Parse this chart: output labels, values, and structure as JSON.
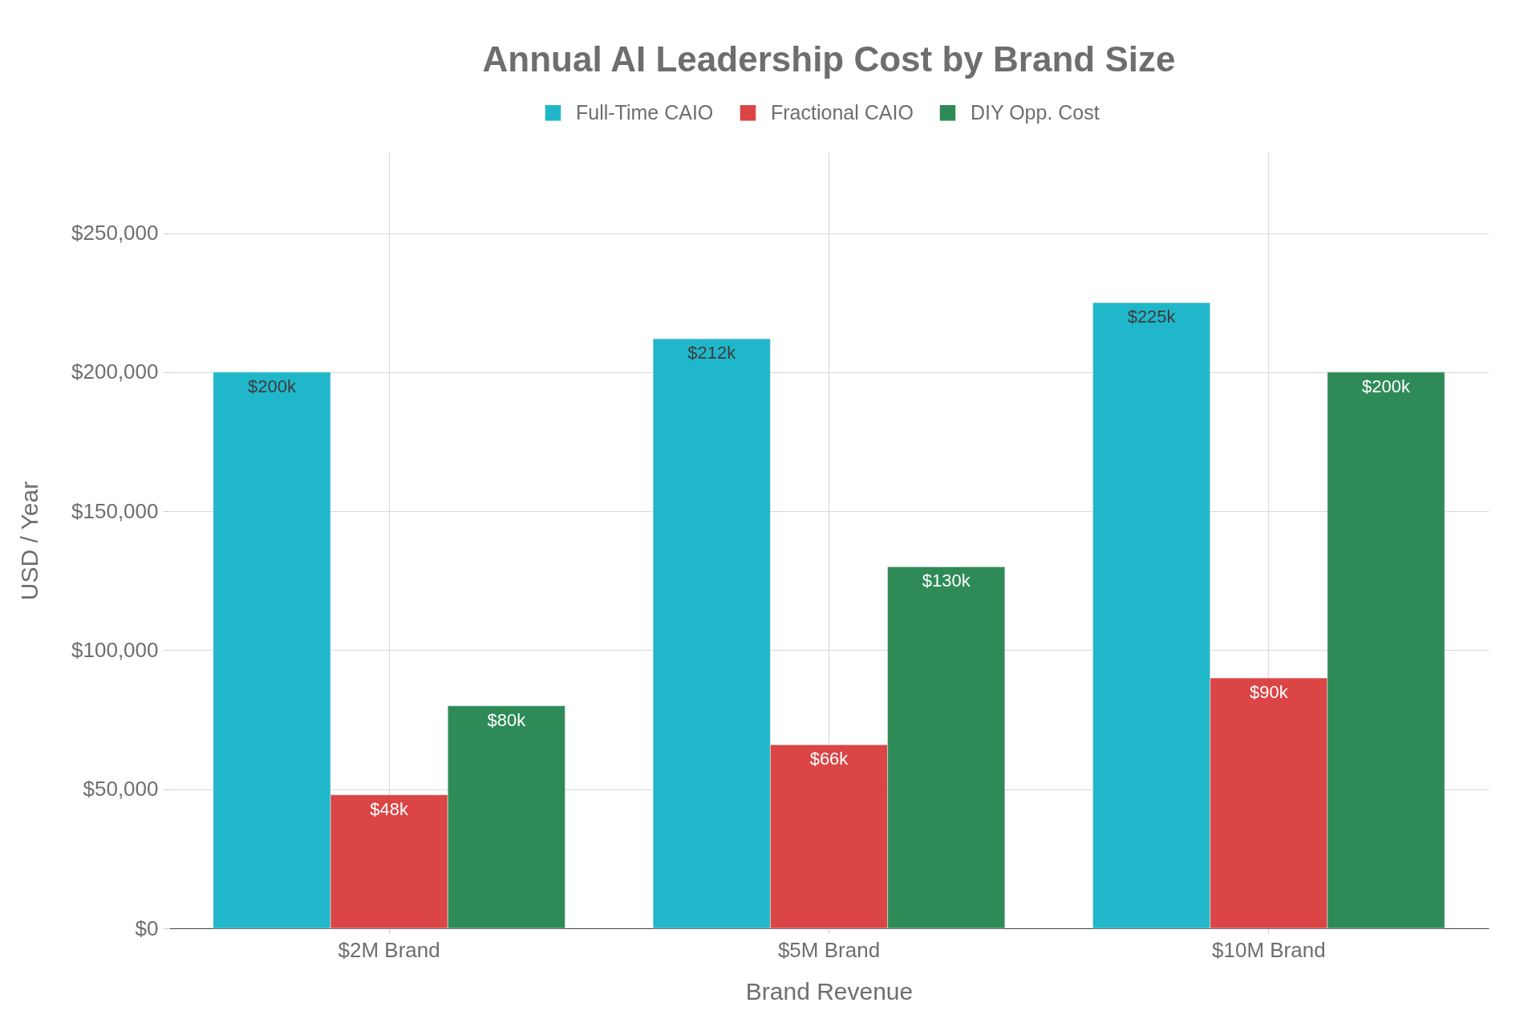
{
  "chart_data": {
    "type": "bar",
    "title": "Annual AI Leadership Cost by Brand Size",
    "xlabel": "Brand Revenue",
    "ylabel": "USD / Year",
    "categories": [
      "$2M Brand",
      "$5M Brand",
      "$10M Brand"
    ],
    "series": [
      {
        "name": "Full-Time CAIO",
        "color": "#21b7cb",
        "values": [
          200000,
          212000,
          225000
        ],
        "value_labels": [
          "$200k",
          "$212k",
          "$225k"
        ]
      },
      {
        "name": "Fractional CAIO",
        "color": "#db4545",
        "values": [
          48000,
          66000,
          90000
        ],
        "value_labels": [
          "$48k",
          "$66k",
          "$90k"
        ]
      },
      {
        "name": "DIY Opp. Cost",
        "color": "#2e8b57",
        "values": [
          80000,
          130000,
          200000
        ],
        "value_labels": [
          "$80k",
          "$130k",
          "$200k"
        ]
      }
    ],
    "ylim": [
      0,
      279000
    ],
    "yticks": [
      {
        "value": 0,
        "label": "$0"
      },
      {
        "value": 50000,
        "label": "$50,000"
      },
      {
        "value": 100000,
        "label": "$100,000"
      },
      {
        "value": 150000,
        "label": "$150,000"
      },
      {
        "value": 200000,
        "label": "$200,000"
      },
      {
        "value": 250000,
        "label": "$250,000"
      }
    ],
    "grid": true,
    "legend": "top"
  }
}
